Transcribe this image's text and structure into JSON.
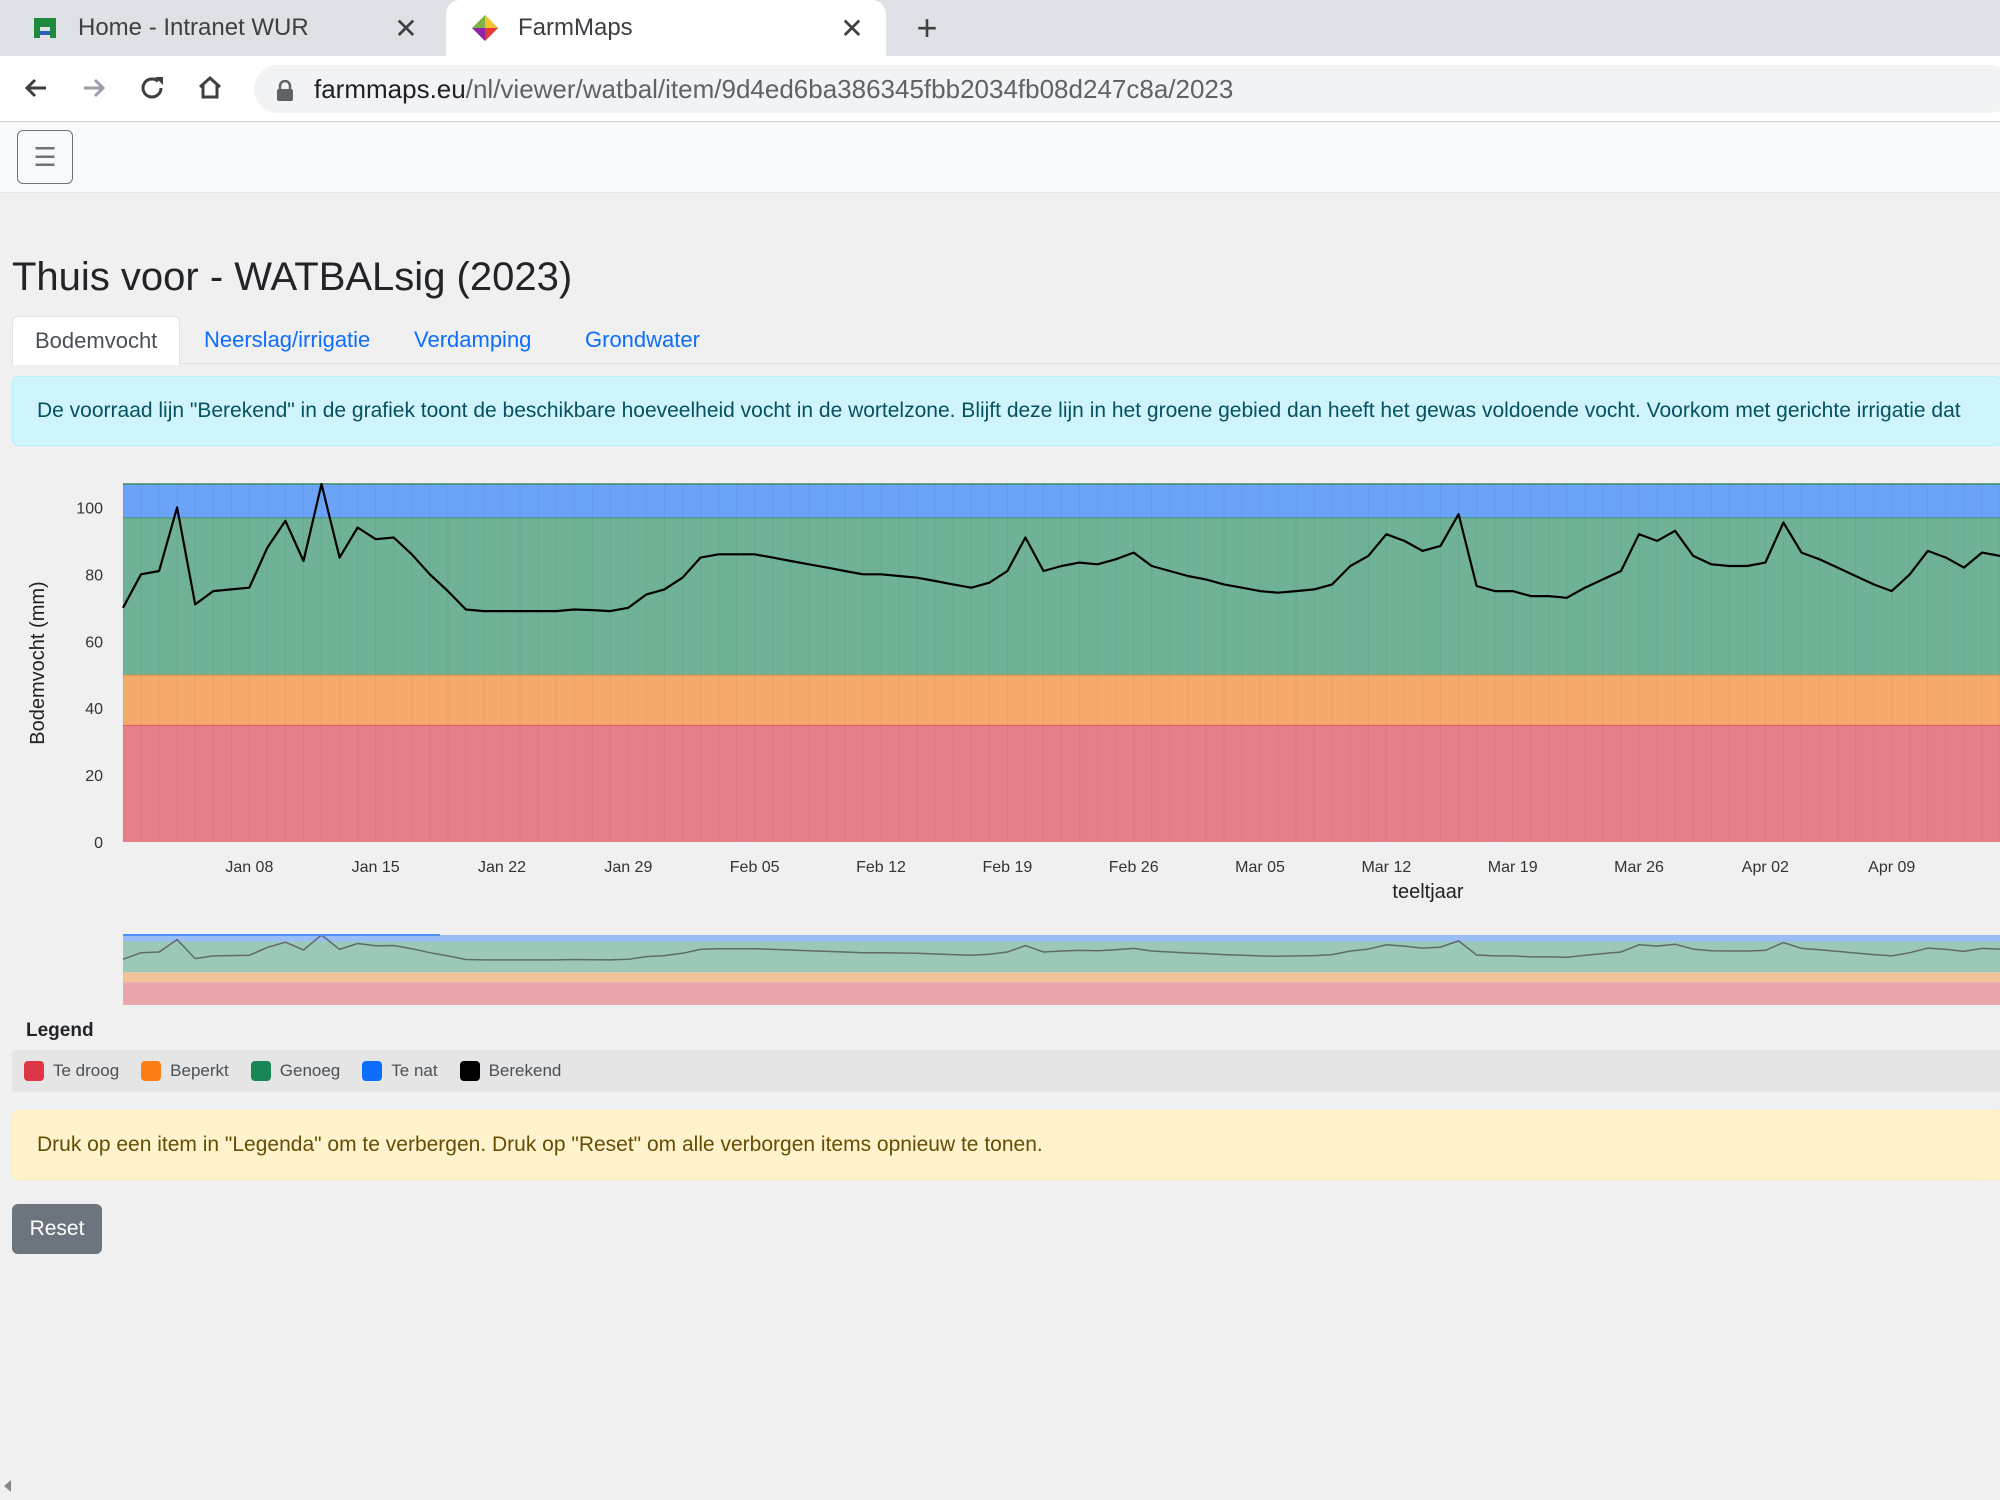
{
  "browser": {
    "tabs": [
      {
        "title": "Home - Intranet WUR",
        "active": false
      },
      {
        "title": "FarmMaps",
        "active": true
      }
    ],
    "url_host": "farmmaps.eu",
    "url_path": "/nl/viewer/watbal/item/9d4ed6ba386345fbb2034fb08d247c8a/2023"
  },
  "page": {
    "title": "Thuis voor - WATBALsig (2023)",
    "tabs": [
      "Bodemvocht",
      "Neerslag/irrigatie",
      "Verdamping",
      "Grondwater"
    ],
    "info_text": "De voorraad lijn \"Berekend\" in de grafiek toont de beschikbare hoeveelheid vocht in de wortelzone. Blijft deze lijn in het groene gebied dan heeft het gewas voldoende vocht. Voorkom met gerichte irrigatie dat",
    "legend_title": "Legend",
    "warning_text": "Druk op een item in \"Legenda\" om te verbergen. Druk op \"Reset\" om alle verborgen items opnieuw te tonen.",
    "reset_label": "Reset"
  },
  "legend": [
    {
      "label": "Te droog",
      "color": "#dc3545"
    },
    {
      "label": "Beperkt",
      "color": "#fd7e14"
    },
    {
      "label": "Genoeg",
      "color": "#198754"
    },
    {
      "label": "Te nat",
      "color": "#0d6efd"
    },
    {
      "label": "Berekend",
      "color": "#000000"
    }
  ],
  "chart_data": {
    "type": "area",
    "xlabel": "teeltjaar",
    "ylabel": "Bodemvocht (mm)",
    "ylim": [
      0,
      107
    ],
    "yticks": [
      0,
      20,
      40,
      60,
      80,
      100
    ],
    "xlim": [
      "2023-01-01",
      "2023-04-15"
    ],
    "xticks": [
      {
        "date": "2023-01-08",
        "label": "Jan 08"
      },
      {
        "date": "2023-01-15",
        "label": "Jan 15"
      },
      {
        "date": "2023-01-22",
        "label": "Jan 22"
      },
      {
        "date": "2023-01-29",
        "label": "Jan 29"
      },
      {
        "date": "2023-02-05",
        "label": "Feb 05"
      },
      {
        "date": "2023-02-12",
        "label": "Feb 12"
      },
      {
        "date": "2023-02-19",
        "label": "Feb 19"
      },
      {
        "date": "2023-02-26",
        "label": "Feb 26"
      },
      {
        "date": "2023-03-05",
        "label": "Mar 05"
      },
      {
        "date": "2023-03-12",
        "label": "Mar 12"
      },
      {
        "date": "2023-03-19",
        "label": "Mar 19"
      },
      {
        "date": "2023-03-26",
        "label": "Mar 26"
      },
      {
        "date": "2023-04-02",
        "label": "Apr 02"
      },
      {
        "date": "2023-04-09",
        "label": "Apr 09"
      }
    ],
    "bands": [
      {
        "name": "Te droog",
        "from": 0,
        "to": 35,
        "color": "#e57f89"
      },
      {
        "name": "Beperkt",
        "from": 35,
        "to": 50,
        "color": "#f5a96a"
      },
      {
        "name": "Genoeg",
        "from": 50,
        "to": 97,
        "color": "#6fb296"
      },
      {
        "name": "Te nat",
        "from": 97,
        "to": 107,
        "color": "#6aa3f8"
      }
    ],
    "series": [
      {
        "name": "Berekend",
        "color": "#000000",
        "x": [
          "2023-01-01",
          "2023-01-02",
          "2023-01-03",
          "2023-01-04",
          "2023-01-05",
          "2023-01-06",
          "2023-01-07",
          "2023-01-08",
          "2023-01-09",
          "2023-01-10",
          "2023-01-11",
          "2023-01-12",
          "2023-01-13",
          "2023-01-14",
          "2023-01-15",
          "2023-01-16",
          "2023-01-17",
          "2023-01-18",
          "2023-01-19",
          "2023-01-20",
          "2023-01-21",
          "2023-01-22",
          "2023-01-23",
          "2023-01-24",
          "2023-01-25",
          "2023-01-26",
          "2023-01-27",
          "2023-01-28",
          "2023-01-29",
          "2023-01-30",
          "2023-01-31",
          "2023-02-01",
          "2023-02-02",
          "2023-02-03",
          "2023-02-04",
          "2023-02-05",
          "2023-02-06",
          "2023-02-07",
          "2023-02-08",
          "2023-02-09",
          "2023-02-10",
          "2023-02-11",
          "2023-02-12",
          "2023-02-13",
          "2023-02-14",
          "2023-02-15",
          "2023-02-16",
          "2023-02-17",
          "2023-02-18",
          "2023-02-19",
          "2023-02-20",
          "2023-02-21",
          "2023-02-22",
          "2023-02-23",
          "2023-02-24",
          "2023-02-25",
          "2023-02-26",
          "2023-02-27",
          "2023-02-28",
          "2023-03-01",
          "2023-03-02",
          "2023-03-03",
          "2023-03-04",
          "2023-03-05",
          "2023-03-06",
          "2023-03-07",
          "2023-03-08",
          "2023-03-09",
          "2023-03-10",
          "2023-03-11",
          "2023-03-12",
          "2023-03-13",
          "2023-03-14",
          "2023-03-15",
          "2023-03-16",
          "2023-03-17",
          "2023-03-18",
          "2023-03-19",
          "2023-03-20",
          "2023-03-21",
          "2023-03-22",
          "2023-03-23",
          "2023-03-24",
          "2023-03-25",
          "2023-03-26",
          "2023-03-27",
          "2023-03-28",
          "2023-03-29",
          "2023-03-30",
          "2023-03-31",
          "2023-04-01",
          "2023-04-02",
          "2023-04-03",
          "2023-04-04",
          "2023-04-05",
          "2023-04-06",
          "2023-04-07",
          "2023-04-08",
          "2023-04-09",
          "2023-04-10",
          "2023-04-11",
          "2023-04-12",
          "2023-04-13",
          "2023-04-14",
          "2023-04-15"
        ],
        "y": [
          70,
          80,
          81,
          100,
          71,
          75,
          75.5,
          76,
          88,
          96,
          84,
          107,
          85,
          94,
          90.5,
          91,
          86,
          80,
          75,
          69.5,
          69,
          69,
          69,
          69,
          69,
          69.5,
          69.3,
          69,
          70,
          74,
          75.5,
          79,
          85,
          86,
          86,
          86,
          85,
          84,
          83,
          82,
          81,
          80,
          80,
          79.5,
          79,
          78,
          77,
          76,
          77.5,
          81,
          91,
          81,
          82.5,
          83.5,
          83,
          84.5,
          86.5,
          82.5,
          81,
          79.5,
          78.5,
          77,
          76,
          75,
          74.5,
          75,
          75.5,
          77,
          82.5,
          85.5,
          92,
          90,
          87,
          88.5,
          98,
          76.5,
          75,
          75,
          73.5,
          73.5,
          73,
          76,
          78.5,
          81,
          92,
          90,
          93,
          85.5,
          83,
          82.5,
          82.5,
          83.5,
          95.5,
          86.5,
          84.5,
          82,
          79.5,
          77,
          75,
          80,
          87,
          85,
          82,
          86.5,
          85.5
        ]
      }
    ]
  }
}
